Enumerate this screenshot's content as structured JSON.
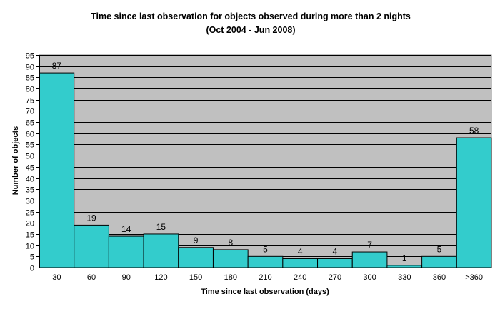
{
  "chart_data": {
    "type": "bar",
    "title": "Time since last observation for objects observed during more than 2 nights",
    "subtitle": "(Oct 2004 - Jun 2008)",
    "xlabel": "Time since last observation (days)",
    "ylabel": "Number of objects",
    "categories": [
      "30",
      "60",
      "90",
      "120",
      "150",
      "180",
      "210",
      "240",
      "270",
      "300",
      "330",
      "360",
      ">360"
    ],
    "values": [
      87,
      19,
      14,
      15,
      9,
      8,
      5,
      4,
      4,
      7,
      1,
      5,
      58
    ],
    "ylim": [
      0,
      95
    ],
    "yticks": [
      0,
      5,
      10,
      15,
      20,
      25,
      30,
      35,
      40,
      45,
      50,
      55,
      60,
      65,
      70,
      75,
      80,
      85,
      90,
      95
    ],
    "grid": true,
    "legend": "none",
    "colors": {
      "bar": "#33CCCC",
      "plot_background": "#C0C0C0",
      "gridline": "#000000"
    }
  }
}
